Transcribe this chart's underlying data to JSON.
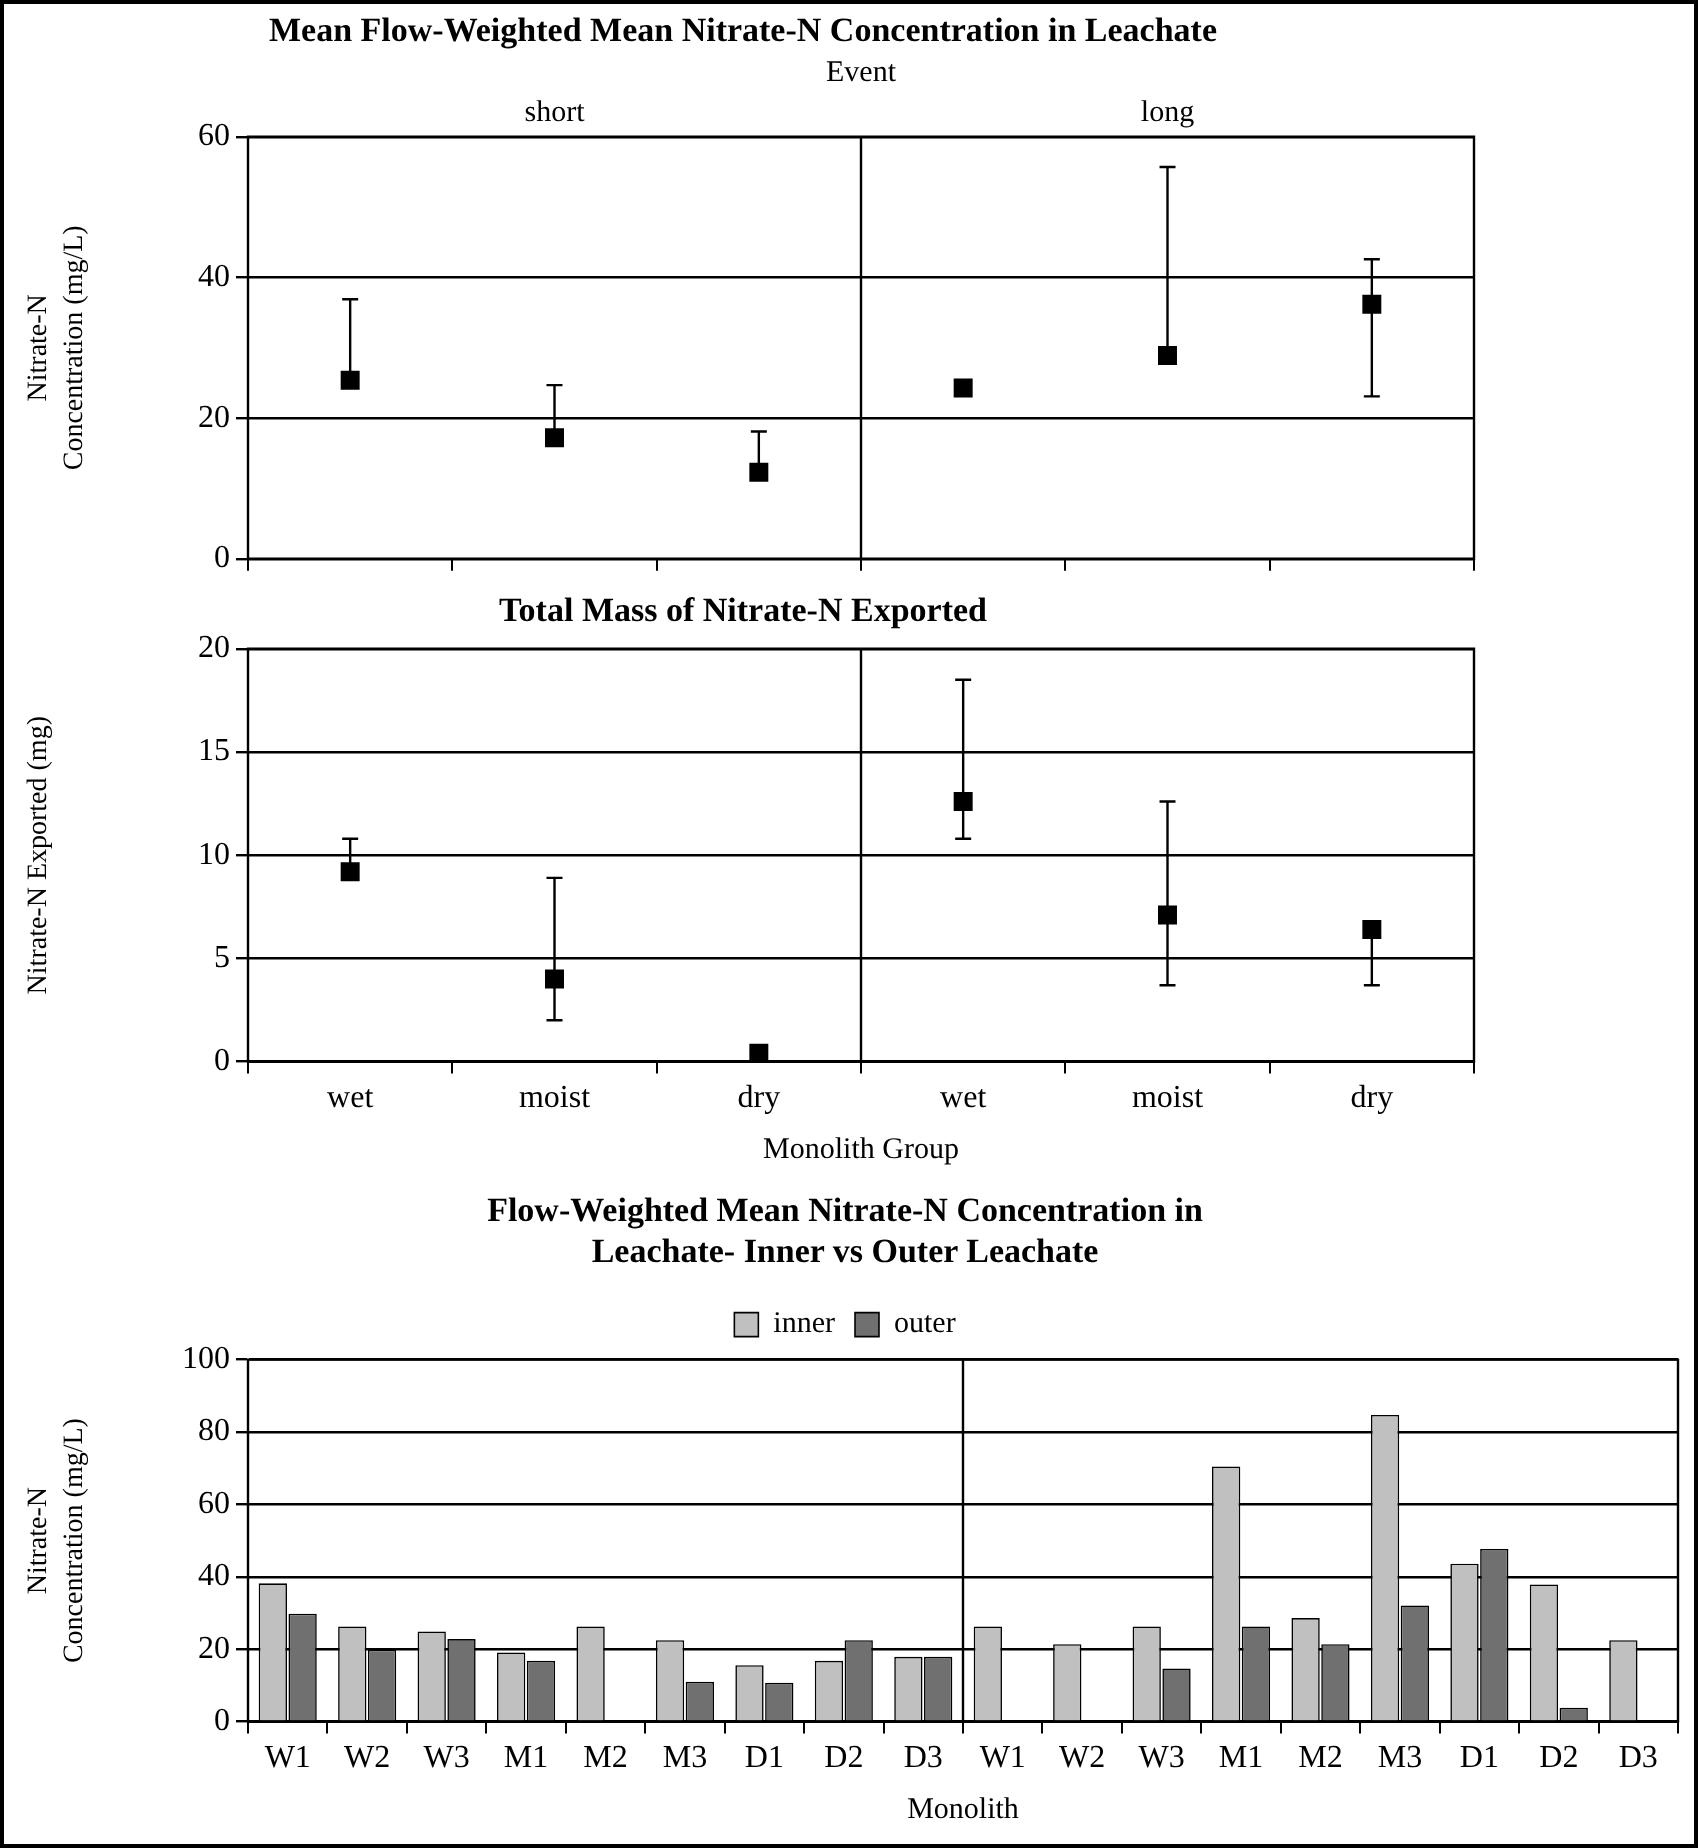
{
  "chart_data": [
    {
      "type": "scatter",
      "title": "Mean Flow-Weighted Mean Nitrate-N Concentration in Leachate",
      "x2label": "Event",
      "ylabel": "Nitrate-N\nConcentration (mg/L)",
      "annotations": [
        "short",
        "long"
      ],
      "categories": [
        null,
        null,
        null,
        null,
        null,
        null
      ],
      "values": [
        25.4,
        17.2,
        12.3,
        24.3,
        28.9,
        36.2
      ],
      "errors": [
        [
          25.4,
          36.9
        ],
        [
          17.2,
          24.7
        ],
        [
          12.3,
          18.1
        ],
        null,
        [
          28.9,
          55.7
        ],
        [
          23.1,
          42.6
        ]
      ],
      "color": "#000000",
      "marker": "square",
      "ylim": [
        0,
        60
      ],
      "yticks": [
        0,
        20,
        40,
        60
      ],
      "grid": "y",
      "tick_labels": "y"
    },
    {
      "type": "scatter",
      "title": "Total Mass of Nitrate-N Exported",
      "xlabel": "Monolith Group",
      "ylabel": "Nitrate-N Exported (mg)",
      "categories": [
        "wet",
        "moist",
        "dry",
        "wet",
        "moist",
        "dry"
      ],
      "values": [
        9.2,
        4.0,
        0.4,
        12.6,
        7.1,
        6.4
      ],
      "errors": [
        [
          9.2,
          10.8
        ],
        [
          2.0,
          8.9
        ],
        null,
        [
          10.8,
          18.5
        ],
        [
          3.7,
          12.6
        ],
        [
          3.7,
          6.4
        ]
      ],
      "color": "#000000",
      "marker": "square",
      "ylim": [
        0,
        20
      ],
      "yticks": [
        0,
        5,
        10,
        15,
        20
      ],
      "grid": "y"
    },
    {
      "type": "bar",
      "title": "Flow-Weighted Mean Nitrate-N Concentration in\nLeachate- Inner vs Outer Leachate",
      "xlabel": "Monolith",
      "ylabel": "Nitrate-N\nConcentration (mg/L)",
      "categories": [
        "W1",
        "W2",
        "W3",
        "M1",
        "M2",
        "M3",
        "D1",
        "D2",
        "D3",
        "W1",
        "W2",
        "W3",
        "M1",
        "M2",
        "M3",
        "D1",
        "D2",
        "D3"
      ],
      "series": [
        {
          "name": "inner",
          "color": "#c0c0c0",
          "values": [
            38.2,
            26.3,
            24.9,
            19.1,
            26.3,
            22.5,
            15.6,
            16.8,
            17.9,
            26.3,
            21.4,
            26.3,
            70.5,
            28.6,
            84.7,
            43.6,
            37.9,
            22.5
          ]
        },
        {
          "name": "outer",
          "color": "#707070",
          "values": [
            29.8,
            19.9,
            22.8,
            16.8,
            null,
            11.0,
            10.7,
            22.5,
            17.9,
            null,
            null,
            14.7,
            26.3,
            21.4,
            32.1,
            47.7,
            3.8,
            null
          ]
        }
      ],
      "ylim": [
        0,
        100
      ],
      "yticks": [
        0,
        20,
        40,
        60,
        80,
        100
      ],
      "grid": "y",
      "legend": "top"
    }
  ]
}
